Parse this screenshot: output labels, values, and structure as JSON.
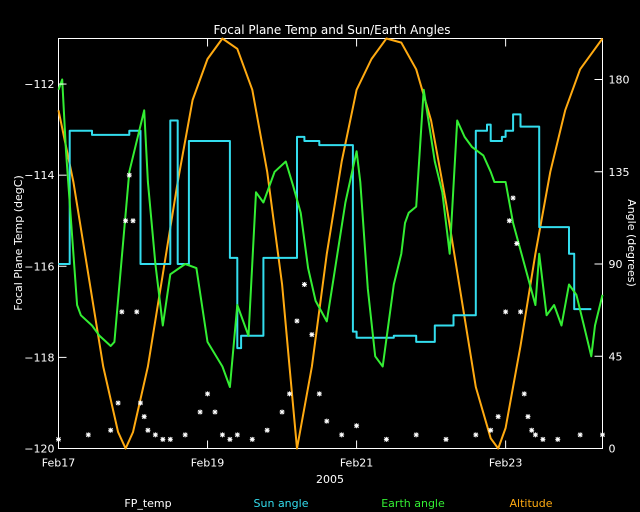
{
  "chart_data": {
    "type": "line",
    "title": "Focal Plane Temp and Sun/Earth Angles",
    "xlabel": "2005",
    "ylabel_left": "Focal Plane Temp (degC)",
    "ylabel_right": "Angle (degrees)",
    "xlim": [
      0,
      7.3
    ],
    "ylim_left": [
      -120,
      -111
    ],
    "ylim_right": [
      0,
      200
    ],
    "x_ticks": [
      {
        "x": 0,
        "label": "Feb17"
      },
      {
        "x": 2,
        "label": "Feb19"
      },
      {
        "x": 4,
        "label": "Feb21"
      },
      {
        "x": 6,
        "label": "Feb23"
      }
    ],
    "y_ticks_left": [
      {
        "y": -120,
        "label": "−120"
      },
      {
        "y": -118,
        "label": "−118"
      },
      {
        "y": -116,
        "label": "−116"
      },
      {
        "y": -114,
        "label": "−114"
      },
      {
        "y": -112,
        "label": "−112"
      }
    ],
    "y_ticks_right": [
      {
        "y": 0,
        "label": "0"
      },
      {
        "y": 45,
        "label": "45"
      },
      {
        "y": 90,
        "label": "90"
      },
      {
        "y": 135,
        "label": "135"
      },
      {
        "y": 180,
        "label": "180"
      }
    ],
    "legend_position": "bottom",
    "series": [
      {
        "name": "FP_temp",
        "axis": "left",
        "color": "#ffffff",
        "style": "points",
        "x": [
          0.0,
          0.4,
          0.7,
          0.8,
          0.85,
          0.9,
          0.95,
          1.0,
          1.05,
          1.1,
          1.15,
          1.2,
          1.3,
          1.4,
          1.5,
          1.7,
          1.9,
          2.0,
          2.1,
          2.2,
          2.3,
          2.4,
          2.6,
          2.8,
          3.0,
          3.1,
          3.2,
          3.3,
          3.4,
          3.5,
          3.6,
          3.8,
          4.0,
          4.4,
          4.8,
          5.2,
          5.6,
          5.8,
          5.9,
          6.0,
          6.05,
          6.1,
          6.15,
          6.2,
          6.25,
          6.3,
          6.35,
          6.4,
          6.5,
          6.7,
          7.0,
          7.3
        ],
        "y": [
          -119.8,
          -119.7,
          -119.6,
          -119.0,
          -117.0,
          -115.0,
          -114.0,
          -115.0,
          -117.0,
          -119.0,
          -119.3,
          -119.6,
          -119.7,
          -119.8,
          -119.8,
          -119.7,
          -119.2,
          -118.8,
          -119.2,
          -119.7,
          -119.8,
          -119.7,
          -119.8,
          -119.6,
          -119.2,
          -118.8,
          -117.2,
          -116.4,
          -117.5,
          -118.8,
          -119.4,
          -119.7,
          -119.5,
          -119.8,
          -119.7,
          -119.8,
          -119.7,
          -119.6,
          -119.3,
          -117.0,
          -115.0,
          -114.5,
          -115.5,
          -117.0,
          -118.8,
          -119.3,
          -119.6,
          -119.7,
          -119.8,
          -119.8,
          -119.7,
          -119.7
        ]
      },
      {
        "name": "Sun angle",
        "axis": "right",
        "color": "#33ddee",
        "style": "line",
        "x": [
          0.0,
          0.15,
          0.15,
          0.45,
          0.45,
          0.95,
          0.95,
          1.1,
          1.1,
          1.5,
          1.5,
          1.6,
          1.6,
          1.75,
          1.75,
          2.3,
          2.3,
          2.4,
          2.4,
          2.45,
          2.45,
          2.75,
          2.75,
          3.2,
          3.2,
          3.3,
          3.3,
          3.5,
          3.5,
          3.65,
          3.65,
          3.95,
          3.95,
          4.0,
          4.0,
          4.5,
          4.5,
          4.8,
          4.8,
          5.05,
          5.05,
          5.3,
          5.3,
          5.6,
          5.6,
          5.75,
          5.75,
          5.8,
          5.8,
          5.95,
          5.95,
          6.0,
          6.0,
          6.1,
          6.1,
          6.2,
          6.2,
          6.45,
          6.45,
          6.6,
          6.6,
          6.85,
          6.85,
          6.92,
          6.92,
          7.15
        ],
        "y": [
          90,
          90,
          155,
          155,
          153,
          153,
          155,
          155,
          90,
          90,
          160,
          160,
          90,
          90,
          150,
          150,
          93,
          93,
          49,
          49,
          55,
          55,
          93,
          93,
          152,
          152,
          150,
          150,
          148,
          148,
          148,
          148,
          57,
          57,
          54,
          54,
          55,
          55,
          52,
          52,
          60,
          60,
          65,
          65,
          155,
          155,
          158,
          158,
          150,
          150,
          152,
          152,
          155,
          155,
          163,
          163,
          157,
          157,
          108,
          108,
          108,
          108,
          95,
          95,
          68,
          68
        ]
      },
      {
        "name": "Earth angle",
        "axis": "right",
        "color": "#33ee33",
        "style": "line",
        "x": [
          0.0,
          0.05,
          0.1,
          0.25,
          0.3,
          0.45,
          0.55,
          0.7,
          0.75,
          0.95,
          1.15,
          1.2,
          1.3,
          1.4,
          1.5,
          1.7,
          1.85,
          2.0,
          2.2,
          2.3,
          2.4,
          2.55,
          2.65,
          2.75,
          2.9,
          3.05,
          3.15,
          3.25,
          3.35,
          3.45,
          3.6,
          3.7,
          3.85,
          4.0,
          4.05,
          4.15,
          4.25,
          4.35,
          4.5,
          4.6,
          4.65,
          4.7,
          4.8,
          4.9,
          5.05,
          5.15,
          5.25,
          5.35,
          5.45,
          5.55,
          5.7,
          5.8,
          5.85,
          6.0,
          6.1,
          6.25,
          6.4,
          6.45,
          6.55,
          6.65,
          6.75,
          6.85,
          6.95,
          7.05,
          7.15,
          7.2,
          7.3
        ],
        "y": [
          175,
          180,
          145,
          70,
          65,
          60,
          55,
          50,
          52,
          135,
          165,
          130,
          90,
          60,
          85,
          90,
          88,
          52,
          40,
          30,
          70,
          55,
          125,
          120,
          135,
          140,
          128,
          115,
          88,
          72,
          62,
          85,
          120,
          145,
          130,
          78,
          45,
          40,
          80,
          95,
          110,
          115,
          118,
          175,
          140,
          125,
          95,
          160,
          152,
          147,
          143,
          135,
          130,
          130,
          110,
          90,
          70,
          95,
          65,
          70,
          60,
          80,
          75,
          60,
          45,
          60,
          75
        ]
      },
      {
        "name": "Altitude",
        "axis": "right",
        "color": "#ffaa11",
        "style": "line",
        "x": [
          0.0,
          0.2,
          0.4,
          0.6,
          0.8,
          0.9,
          1.0,
          1.2,
          1.4,
          1.6,
          1.8,
          2.0,
          2.2,
          2.4,
          2.6,
          2.8,
          3.0,
          3.1,
          3.2,
          3.4,
          3.6,
          3.8,
          4.0,
          4.2,
          4.4,
          4.6,
          4.8,
          5.0,
          5.2,
          5.4,
          5.6,
          5.8,
          5.9,
          6.0,
          6.2,
          6.4,
          6.6,
          6.8,
          7.0,
          7.2,
          7.3
        ],
        "y": [
          165,
          130,
          85,
          40,
          8,
          0,
          8,
          40,
          85,
          130,
          170,
          190,
          200,
          195,
          175,
          135,
          80,
          40,
          0,
          40,
          95,
          140,
          175,
          190,
          200,
          198,
          185,
          160,
          120,
          75,
          30,
          5,
          0,
          10,
          50,
          95,
          135,
          165,
          185,
          195,
          200
        ]
      }
    ]
  }
}
